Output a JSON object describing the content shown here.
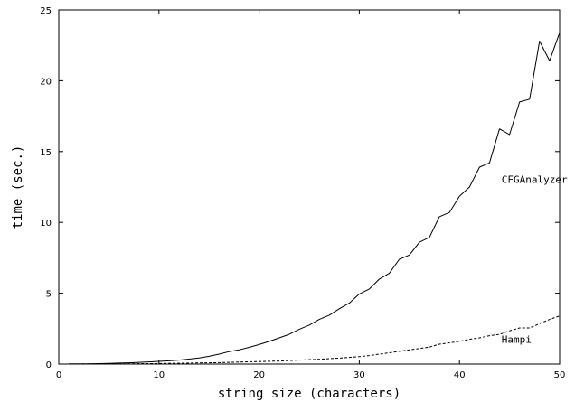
{
  "chart_data": {
    "type": "line",
    "title": "",
    "xlabel": "string size (characters)",
    "ylabel": "time (sec.)",
    "xlim": [
      0,
      50
    ],
    "ylim": [
      0,
      25
    ],
    "xticks": [
      0,
      10,
      20,
      30,
      40,
      50
    ],
    "yticks": [
      0,
      5,
      10,
      15,
      20,
      25
    ],
    "grid": false,
    "legend": "none",
    "x": [
      1,
      2,
      3,
      4,
      5,
      6,
      7,
      8,
      9,
      10,
      11,
      12,
      13,
      14,
      15,
      16,
      17,
      18,
      19,
      20,
      21,
      22,
      23,
      24,
      25,
      26,
      27,
      28,
      29,
      30,
      31,
      32,
      33,
      34,
      35,
      36,
      37,
      38,
      39,
      40,
      41,
      42,
      43,
      44,
      45,
      46,
      47,
      48,
      49,
      50
    ],
    "series": [
      {
        "name": "CFGAnalyzer",
        "style": "solid",
        "color": "#000000",
        "values": [
          0.01,
          0.01,
          0.02,
          0.03,
          0.05,
          0.07,
          0.09,
          0.12,
          0.15,
          0.19,
          0.23,
          0.28,
          0.35,
          0.43,
          0.55,
          0.7,
          0.88,
          1.0,
          1.18,
          1.38,
          1.6,
          1.85,
          2.1,
          2.45,
          2.75,
          3.15,
          3.45,
          3.9,
          4.3,
          4.95,
          5.3,
          6.0,
          6.4,
          7.4,
          7.7,
          8.6,
          8.95,
          10.4,
          10.7,
          11.85,
          12.5,
          13.9,
          14.2,
          16.6,
          16.2,
          18.5,
          18.7,
          22.8,
          21.4,
          23.4
        ]
      },
      {
        "name": "Hampi",
        "style": "dashed",
        "color": "#000000",
        "values": [
          0.0,
          0.0,
          0.01,
          0.01,
          0.01,
          0.02,
          0.02,
          0.03,
          0.03,
          0.04,
          0.05,
          0.06,
          0.07,
          0.08,
          0.09,
          0.1,
          0.12,
          0.14,
          0.16,
          0.18,
          0.2,
          0.22,
          0.25,
          0.28,
          0.31,
          0.34,
          0.38,
          0.42,
          0.47,
          0.52,
          0.6,
          0.7,
          0.8,
          0.9,
          1.0,
          1.1,
          1.2,
          1.4,
          1.5,
          1.6,
          1.75,
          1.85,
          2.0,
          2.1,
          2.35,
          2.55,
          2.55,
          2.85,
          3.15,
          3.4
        ]
      }
    ],
    "annotations": [
      {
        "text": "CFGAnalyzer",
        "x": 44.2,
        "y": 12.8
      },
      {
        "text": "Hampi",
        "x": 44.2,
        "y": 1.5
      }
    ]
  }
}
